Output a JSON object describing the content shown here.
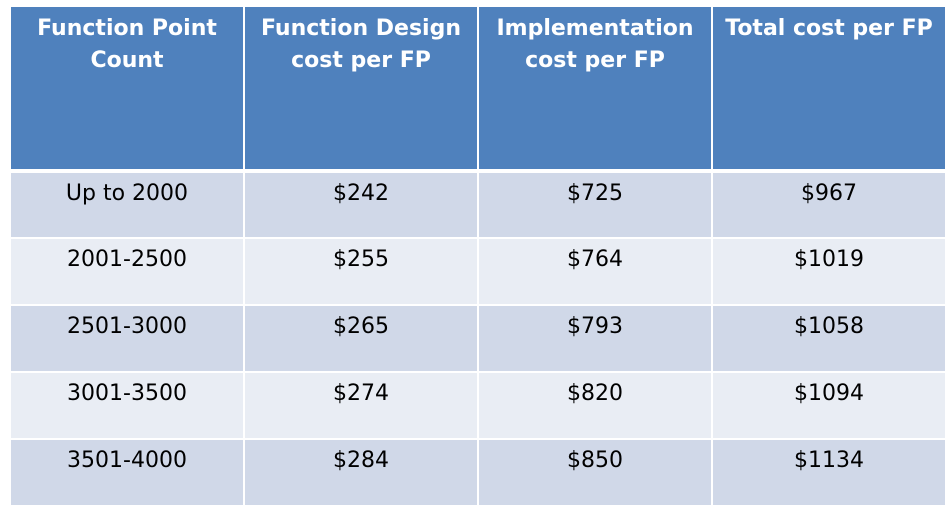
{
  "chart_data": {
    "type": "table",
    "columns": [
      "Function Point Count",
      "Function Design cost per FP",
      "Implementation cost per FP",
      "Total cost per FP"
    ],
    "rows": [
      [
        "Up to 2000",
        "$242",
        "$725",
        "$967"
      ],
      [
        "2001-2500",
        "$255",
        "$764",
        "$1019"
      ],
      [
        "2501-3000",
        "$265",
        "$793",
        "$1058"
      ],
      [
        "3001-3500",
        "$274",
        "$820",
        "$1094"
      ],
      [
        "3501-4000",
        "$284",
        "$850",
        "$1134"
      ]
    ]
  },
  "colors": {
    "header_bg": "#4f81bd",
    "row_odd_bg": "#d0d8e8",
    "row_even_bg": "#e9edf4"
  }
}
